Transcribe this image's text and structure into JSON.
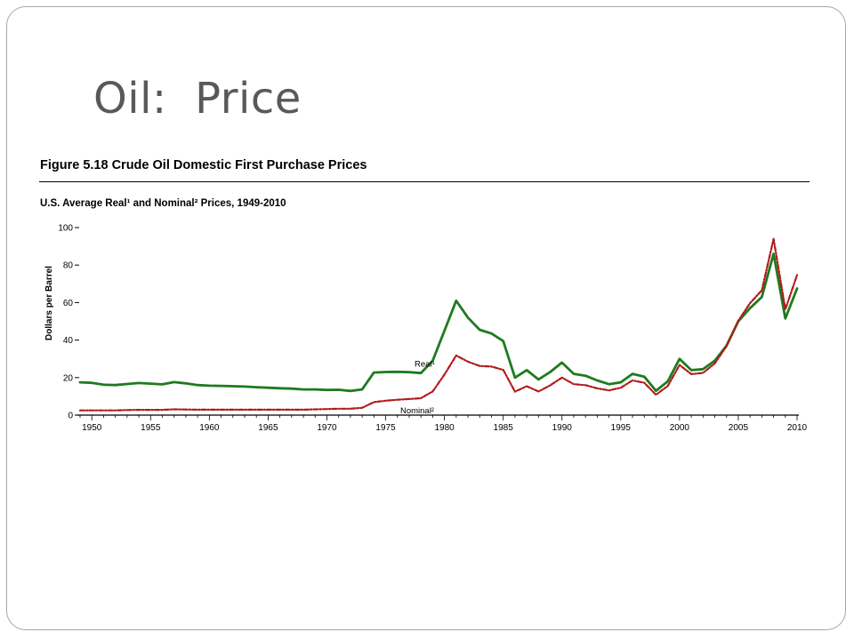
{
  "slide": {
    "title": "Oil:  Price"
  },
  "figure": {
    "title": "Figure 5.18  Crude Oil Domestic First Purchase Prices",
    "subtitle": "U.S. Average Real¹ and Nominal² Prices, 1949-2010"
  },
  "colors": {
    "real": "#1f7a1f",
    "nominal": "#b01a1a",
    "frame": "#a6a6a6",
    "title": "#595959"
  },
  "chart_data": {
    "type": "line",
    "ylabel": "Dollars per Barrel",
    "xlim": [
      1949,
      2010
    ],
    "ylim": [
      0,
      100
    ],
    "yticks": [
      0,
      20,
      40,
      60,
      80,
      100
    ],
    "xticks": [
      1950,
      1955,
      1960,
      1965,
      1970,
      1975,
      1980,
      1985,
      1990,
      1995,
      2000,
      2005,
      2010
    ],
    "grid": false,
    "legend": "inline labels",
    "x": [
      1949,
      1950,
      1951,
      1952,
      1953,
      1954,
      1955,
      1956,
      1957,
      1958,
      1959,
      1960,
      1961,
      1962,
      1963,
      1964,
      1965,
      1966,
      1967,
      1968,
      1969,
      1970,
      1971,
      1972,
      1973,
      1974,
      1975,
      1976,
      1977,
      1978,
      1979,
      1980,
      1981,
      1982,
      1983,
      1984,
      1985,
      1986,
      1987,
      1988,
      1989,
      1990,
      1991,
      1992,
      1993,
      1994,
      1995,
      1996,
      1997,
      1998,
      1999,
      2000,
      2001,
      2002,
      2003,
      2004,
      2005,
      2006,
      2007,
      2008,
      2009,
      2010
    ],
    "series": [
      {
        "name": "Real¹",
        "values": [
          17.5,
          17.2,
          16.2,
          16.0,
          16.6,
          17.1,
          16.8,
          16.4,
          17.6,
          16.9,
          16.0,
          15.7,
          15.6,
          15.4,
          15.2,
          14.9,
          14.6,
          14.3,
          14.1,
          13.7,
          13.7,
          13.4,
          13.5,
          12.9,
          13.7,
          22.7,
          23.0,
          23.1,
          22.9,
          22.4,
          29.0,
          45.0,
          61.0,
          52.0,
          45.5,
          43.5,
          39.5,
          20.0,
          24.0,
          19.0,
          23.0,
          28.0,
          22.0,
          21.0,
          18.5,
          16.5,
          17.5,
          22.0,
          20.5,
          13.0,
          18.0,
          30.0,
          24.0,
          24.5,
          29.0,
          37.0,
          50.0,
          57.0,
          63.0,
          86.0,
          51.5,
          67.5
        ]
      },
      {
        "name": "Nominal²",
        "values": [
          2.5,
          2.5,
          2.5,
          2.5,
          2.7,
          2.8,
          2.8,
          2.8,
          3.1,
          3.0,
          2.9,
          2.9,
          2.9,
          2.9,
          2.9,
          2.9,
          2.9,
          2.9,
          2.9,
          2.9,
          3.1,
          3.2,
          3.4,
          3.4,
          3.9,
          6.9,
          7.7,
          8.2,
          8.6,
          9.0,
          12.6,
          21.6,
          31.8,
          28.5,
          26.2,
          25.9,
          24.1,
          12.5,
          15.4,
          12.6,
          15.9,
          20.0,
          16.5,
          15.99,
          14.25,
          13.19,
          14.62,
          18.46,
          17.23,
          10.87,
          15.56,
          26.72,
          21.84,
          22.51,
          27.56,
          36.77,
          50.28,
          59.69,
          66.52,
          94.0,
          56.35,
          74.71
        ]
      }
    ],
    "annotations": [
      {
        "text": "Real¹",
        "series": "Real¹",
        "at": 1977
      },
      {
        "text": "Nominal²",
        "series": "Nominal²",
        "at": 1977
      }
    ]
  }
}
